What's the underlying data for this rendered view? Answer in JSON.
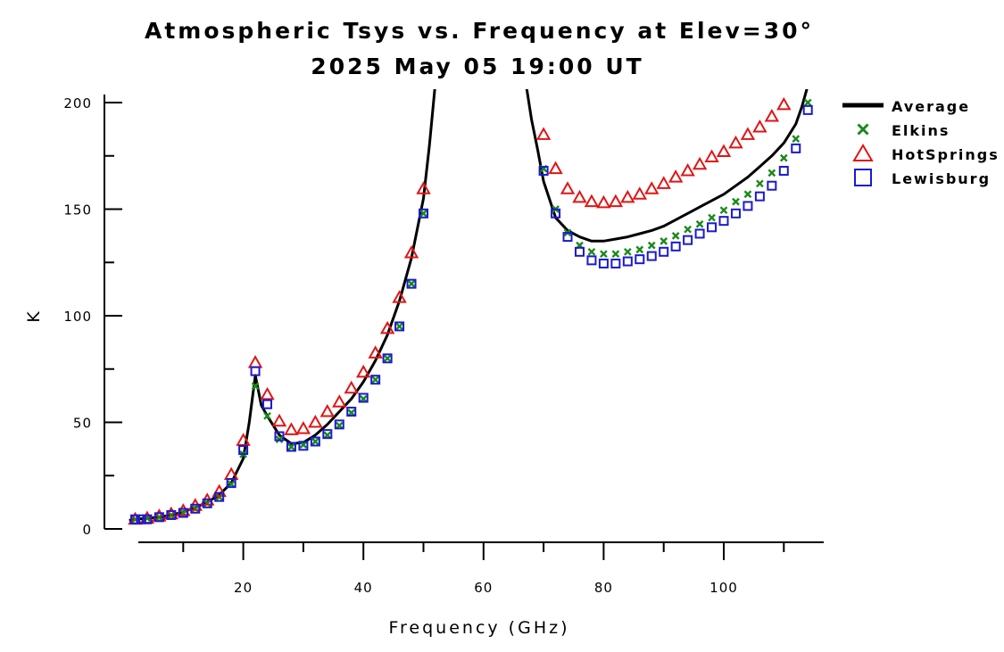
{
  "chart_data": {
    "type": "line",
    "title": "Atmospheric Tsys vs. Frequency at Elev=30°",
    "subtitle": "2025 May 05 19:00 UT",
    "xlabel": "Frequency (GHz)",
    "ylabel": "K",
    "xlim": [
      1,
      115
    ],
    "ylim": [
      0,
      200
    ],
    "x_ticks": [
      20,
      40,
      60,
      80,
      100
    ],
    "y_ticks": [
      0,
      50,
      100,
      150,
      200
    ],
    "legend_position": "right",
    "series": [
      {
        "name": "Average",
        "marker": "line",
        "color": "#000000",
        "x": [
          1,
          2,
          4,
          6,
          8,
          10,
          12,
          14,
          16,
          18,
          20,
          21,
          22,
          23,
          24,
          26,
          28,
          30,
          32,
          34,
          36,
          38,
          40,
          42,
          44,
          46,
          48,
          50,
          51,
          52,
          66,
          67,
          68,
          69,
          70,
          72,
          74,
          76,
          78,
          80,
          82,
          84,
          86,
          88,
          90,
          92,
          94,
          96,
          98,
          100,
          102,
          104,
          106,
          108,
          110,
          112,
          113,
          114
        ],
        "y": [
          4,
          4.5,
          5,
          5.5,
          6.5,
          8,
          10,
          12.5,
          16,
          21.5,
          33,
          50,
          72,
          58,
          53,
          44,
          40,
          40.5,
          44,
          49,
          55,
          61,
          69,
          79,
          91,
          107,
          127,
          155,
          180,
          210,
          230,
          210,
          192,
          178,
          163,
          146,
          140,
          137,
          135,
          135,
          136,
          137,
          138.5,
          140,
          142,
          145,
          148,
          151,
          154,
          157,
          161,
          165,
          170,
          175,
          181,
          190,
          198,
          208
        ]
      },
      {
        "name": "Elkins",
        "marker": "x",
        "color": "#1a8a1a",
        "x": [
          2,
          4,
          6,
          8,
          10,
          12,
          14,
          16,
          18,
          20,
          22,
          24,
          26,
          28,
          30,
          32,
          34,
          36,
          38,
          40,
          42,
          44,
          46,
          48,
          50,
          70,
          72,
          74,
          76,
          78,
          80,
          82,
          84,
          86,
          88,
          90,
          92,
          94,
          96,
          98,
          100,
          102,
          104,
          106,
          108,
          110,
          112,
          114
        ],
        "y": [
          4.5,
          5,
          5.5,
          6.5,
          7.5,
          9.5,
          12,
          15,
          21,
          35,
          67,
          53,
          42,
          38.5,
          39.5,
          41,
          44,
          48.5,
          54.5,
          61,
          70,
          80,
          95,
          115,
          148,
          169,
          150,
          139,
          133,
          130,
          129,
          129,
          130,
          131,
          133,
          135,
          137.5,
          140.5,
          143,
          146,
          149.5,
          153.5,
          157,
          162,
          167,
          174,
          183,
          200
        ]
      },
      {
        "name": "HotSprings",
        "marker": "triangle",
        "color": "#e01515",
        "x": [
          2,
          4,
          6,
          8,
          10,
          12,
          14,
          16,
          18,
          20,
          22,
          24,
          26,
          28,
          30,
          32,
          34,
          36,
          38,
          40,
          42,
          44,
          46,
          48,
          50,
          70,
          72,
          74,
          76,
          78,
          80,
          82,
          84,
          86,
          88,
          90,
          92,
          94,
          96,
          98,
          100,
          102,
          104,
          106,
          108,
          110
        ],
        "y": [
          4.5,
          5,
          6,
          7,
          8.5,
          11,
          13.5,
          17.5,
          25.5,
          41.5,
          78,
          63,
          50.5,
          46.5,
          47,
          50,
          55,
          59.5,
          66,
          73.5,
          82.5,
          94,
          108.5,
          129.5,
          159.5,
          185,
          169,
          159.5,
          155.5,
          153.5,
          153,
          153.5,
          155.5,
          157,
          159.5,
          162,
          165,
          168,
          171,
          174.5,
          177,
          181,
          185,
          188.5,
          193.5,
          199
        ]
      },
      {
        "name": "Lewisburg",
        "marker": "square",
        "color": "#1a1ad0",
        "x": [
          2,
          3,
          4,
          6,
          8,
          10,
          12,
          14,
          16,
          18,
          20,
          22,
          24,
          26,
          28,
          30,
          32,
          34,
          36,
          38,
          40,
          42,
          44,
          46,
          48,
          50,
          70,
          72,
          74,
          76,
          78,
          80,
          82,
          84,
          86,
          88,
          90,
          92,
          94,
          96,
          98,
          100,
          102,
          104,
          106,
          108,
          110,
          112,
          114
        ],
        "y": [
          4.5,
          4.5,
          4.5,
          5.5,
          6.5,
          7.5,
          9.5,
          12,
          15,
          21.5,
          37,
          74,
          58.5,
          43.5,
          38.5,
          39,
          41,
          44.5,
          49,
          55,
          61.5,
          70,
          80,
          95,
          115,
          148,
          168,
          148,
          137,
          130,
          126,
          124.5,
          124.5,
          125.5,
          126.5,
          128,
          130,
          132.5,
          135.5,
          138.5,
          141.5,
          144.5,
          148,
          151.5,
          156,
          161,
          168,
          178.5,
          196.5
        ]
      }
    ]
  }
}
